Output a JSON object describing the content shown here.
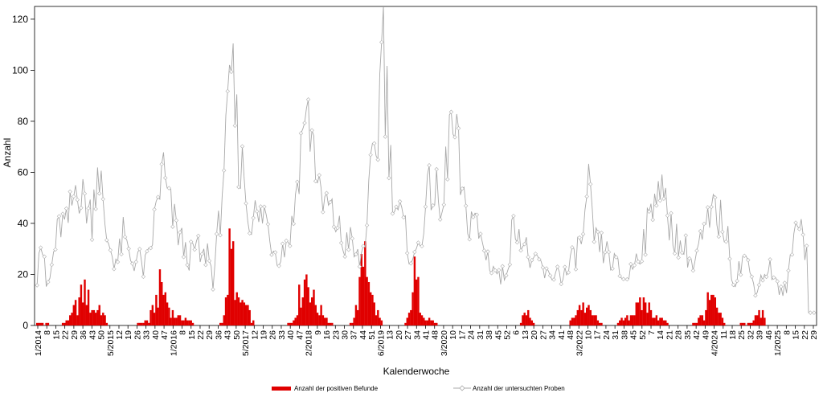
{
  "colors": {
    "positive": "#e00000",
    "tested": "#a8a8a8",
    "axis": "#000000",
    "plot_bg": "#ffffff"
  },
  "chart_data": {
    "type": "bar+line",
    "title": "",
    "xlabel": "Kalenderwoche",
    "ylabel": "Anzahl",
    "ylim": [
      0,
      125
    ],
    "y_ticks": [
      0,
      20,
      40,
      60,
      80,
      100,
      120
    ],
    "grid": false,
    "legend_position": "bottom-center",
    "x_tick_labels": [
      "1/2014",
      "8",
      "15",
      "22",
      "29",
      "36",
      "43",
      "50",
      "5/2015",
      "12",
      "19",
      "26",
      "33",
      "40",
      "47",
      "1/2016",
      "8",
      "15",
      "22",
      "29",
      "36",
      "43",
      "50",
      "5/2017",
      "12",
      "19",
      "26",
      "33",
      "40",
      "47",
      "2/2018",
      "9",
      "16",
      "23",
      "30",
      "37",
      "44",
      "51",
      "6/2019",
      "13",
      "20",
      "27",
      "34",
      "41",
      "48",
      "3/2020",
      "10",
      "17",
      "24",
      "31",
      "38",
      "45",
      "52",
      "6",
      "13",
      "20",
      "27",
      "34",
      "41",
      "48",
      "3/2022",
      "10",
      "17",
      "24",
      "31",
      "38",
      "45",
      "52",
      "7",
      "14",
      "21",
      "28",
      "35",
      "42",
      "49",
      "4/2024",
      "11",
      "18",
      "25",
      "32",
      "39",
      "46",
      "1/2025",
      "8",
      "15",
      "22",
      "29"
    ],
    "series": [
      {
        "name": "Anzahl der positiven Befunde",
        "kind": "bar",
        "anchors": [
          [
            0,
            1
          ],
          [
            12,
            0
          ],
          [
            18,
            3
          ],
          [
            20,
            6
          ],
          [
            23,
            10
          ],
          [
            26,
            15
          ],
          [
            28,
            10
          ],
          [
            31,
            6
          ],
          [
            34,
            8
          ],
          [
            36,
            5
          ],
          [
            38,
            1
          ],
          [
            41,
            0
          ],
          [
            52,
            0
          ],
          [
            56,
            1
          ],
          [
            61,
            2
          ],
          [
            63,
            6
          ],
          [
            66,
            13
          ],
          [
            68,
            17
          ],
          [
            70,
            12
          ],
          [
            72,
            8
          ],
          [
            74,
            5
          ],
          [
            77,
            3
          ],
          [
            80,
            3
          ],
          [
            83,
            2
          ],
          [
            86,
            0
          ],
          [
            98,
            0
          ],
          [
            101,
            2
          ],
          [
            103,
            8
          ],
          [
            104,
            18
          ],
          [
            105,
            28
          ],
          [
            107,
            27
          ],
          [
            108,
            20
          ],
          [
            109,
            12
          ],
          [
            110,
            8
          ],
          [
            112,
            10
          ],
          [
            115,
            6
          ],
          [
            117,
            3
          ],
          [
            119,
            0
          ],
          [
            135,
            0
          ],
          [
            140,
            2
          ],
          [
            142,
            8
          ],
          [
            144,
            14
          ],
          [
            146,
            18
          ],
          [
            147,
            21
          ],
          [
            149,
            16
          ],
          [
            151,
            10
          ],
          [
            153,
            7
          ],
          [
            156,
            5
          ],
          [
            158,
            3
          ],
          [
            162,
            0
          ],
          [
            170,
            0
          ],
          [
            173,
            3
          ],
          [
            175,
            10
          ],
          [
            177,
            20
          ],
          [
            178,
            30
          ],
          [
            179,
            36
          ],
          [
            180,
            28
          ],
          [
            182,
            18
          ],
          [
            183,
            10
          ],
          [
            185,
            6
          ],
          [
            187,
            3
          ],
          [
            189,
            0
          ],
          [
            200,
            0
          ],
          [
            201,
            1
          ],
          [
            202,
            2
          ],
          [
            203,
            4
          ],
          [
            204,
            10
          ],
          [
            205,
            18
          ],
          [
            206,
            20
          ],
          [
            208,
            14
          ],
          [
            209,
            9
          ],
          [
            211,
            5
          ],
          [
            213,
            3
          ],
          [
            216,
            2
          ],
          [
            219,
            0
          ],
          [
            228,
            0
          ],
          [
            230,
            0
          ],
          [
            262,
            0
          ],
          [
            264,
            1
          ],
          [
            266,
            5
          ],
          [
            268,
            6
          ],
          [
            270,
            2
          ],
          [
            272,
            0
          ],
          [
            290,
            0
          ],
          [
            292,
            3
          ],
          [
            294,
            6
          ],
          [
            296,
            8
          ],
          [
            298,
            8
          ],
          [
            300,
            7
          ],
          [
            302,
            5
          ],
          [
            304,
            4
          ],
          [
            306,
            2
          ],
          [
            309,
            0
          ],
          [
            316,
            0
          ],
          [
            319,
            2
          ],
          [
            322,
            4
          ],
          [
            325,
            5
          ],
          [
            328,
            7
          ],
          [
            330,
            9
          ],
          [
            332,
            10
          ],
          [
            334,
            7
          ],
          [
            336,
            5
          ],
          [
            338,
            4
          ],
          [
            340,
            3
          ],
          [
            342,
            2
          ],
          [
            344,
            1
          ],
          [
            346,
            0
          ],
          [
            356,
            0
          ],
          [
            359,
            1
          ],
          [
            362,
            3
          ],
          [
            364,
            5
          ],
          [
            366,
            9
          ],
          [
            368,
            11
          ],
          [
            370,
            8
          ],
          [
            372,
            5
          ],
          [
            374,
            2
          ],
          [
            376,
            0
          ],
          [
            382,
            0
          ],
          [
            385,
            1
          ],
          [
            387,
            0
          ],
          [
            390,
            2
          ],
          [
            393,
            4
          ],
          [
            396,
            5
          ],
          [
            398,
            0
          ]
        ]
      },
      {
        "name": "Anzahl der untersuchten Proben",
        "kind": "line",
        "anchors": [
          [
            0,
            20
          ],
          [
            1,
            35
          ],
          [
            3,
            30
          ],
          [
            5,
            15
          ],
          [
            7,
            18
          ],
          [
            9,
            28
          ],
          [
            11,
            35
          ],
          [
            13,
            40
          ],
          [
            16,
            38
          ],
          [
            18,
            44
          ],
          [
            20,
            50
          ],
          [
            22,
            60
          ],
          [
            24,
            48
          ],
          [
            26,
            50
          ],
          [
            28,
            45
          ],
          [
            30,
            43
          ],
          [
            33,
            65
          ],
          [
            35,
            55
          ],
          [
            37,
            35
          ],
          [
            39,
            33
          ],
          [
            41,
            28
          ],
          [
            44,
            25
          ],
          [
            47,
            35
          ],
          [
            49,
            30
          ],
          [
            52,
            25
          ],
          [
            55,
            27
          ],
          [
            58,
            22
          ],
          [
            61,
            26
          ],
          [
            63,
            35
          ],
          [
            65,
            45
          ],
          [
            67,
            55
          ],
          [
            69,
            60
          ],
          [
            71,
            50
          ],
          [
            73,
            45
          ],
          [
            75,
            40
          ],
          [
            78,
            35
          ],
          [
            81,
            28
          ],
          [
            84,
            27
          ],
          [
            87,
            31
          ],
          [
            90,
            25
          ],
          [
            93,
            30
          ],
          [
            96,
            18
          ],
          [
            98,
            30
          ],
          [
            100,
            45
          ],
          [
            102,
            65
          ],
          [
            104,
            75
          ],
          [
            106,
            97
          ],
          [
            107,
            92
          ],
          [
            109,
            77
          ],
          [
            111,
            60
          ],
          [
            113,
            62
          ],
          [
            115,
            42
          ],
          [
            118,
            45
          ],
          [
            121,
            40
          ],
          [
            124,
            45
          ],
          [
            127,
            35
          ],
          [
            130,
            30
          ],
          [
            133,
            28
          ],
          [
            136,
            33
          ],
          [
            139,
            38
          ],
          [
            141,
            50
          ],
          [
            143,
            65
          ],
          [
            145,
            75
          ],
          [
            146,
            90
          ],
          [
            147,
            78
          ],
          [
            149,
            80
          ],
          [
            151,
            70
          ],
          [
            153,
            60
          ],
          [
            155,
            45
          ],
          [
            158,
            48
          ],
          [
            161,
            42
          ],
          [
            164,
            40
          ],
          [
            167,
            30
          ],
          [
            170,
            35
          ],
          [
            173,
            28
          ],
          [
            176,
            25
          ],
          [
            178,
            30
          ],
          [
            180,
            42
          ],
          [
            182,
            55
          ],
          [
            184,
            65
          ],
          [
            186,
            75
          ],
          [
            187,
            92
          ],
          [
            188,
            122
          ],
          [
            189,
            115
          ],
          [
            190,
            95
          ],
          [
            191,
            88
          ],
          [
            192,
            72
          ],
          [
            193,
            62
          ],
          [
            195,
            50
          ],
          [
            197,
            45
          ],
          [
            200,
            38
          ],
          [
            203,
            30
          ],
          [
            206,
            25
          ],
          [
            209,
            35
          ],
          [
            212,
            45
          ],
          [
            215,
            55
          ],
          [
            218,
            50
          ],
          [
            221,
            40
          ],
          [
            223,
            60
          ],
          [
            224,
            70
          ],
          [
            225,
            80
          ],
          [
            226,
            75
          ],
          [
            228,
            72
          ],
          [
            230,
            65
          ],
          [
            232,
            48
          ],
          [
            235,
            40
          ],
          [
            238,
            45
          ],
          [
            241,
            35
          ],
          [
            244,
            30
          ],
          [
            247,
            25
          ],
          [
            250,
            22
          ],
          [
            253,
            18
          ],
          [
            256,
            22
          ],
          [
            259,
            35
          ],
          [
            262,
            42
          ],
          [
            265,
            32
          ],
          [
            268,
            28
          ],
          [
            271,
            22
          ],
          [
            274,
            25
          ],
          [
            277,
            20
          ],
          [
            280,
            18
          ],
          [
            283,
            22
          ],
          [
            286,
            20
          ],
          [
            289,
            20
          ],
          [
            292,
            25
          ],
          [
            295,
            30
          ],
          [
            298,
            35
          ],
          [
            300,
            45
          ],
          [
            301,
            52
          ],
          [
            303,
            40
          ],
          [
            305,
            32
          ],
          [
            308,
            30
          ],
          [
            311,
            28
          ],
          [
            314,
            25
          ],
          [
            317,
            22
          ],
          [
            320,
            18
          ],
          [
            323,
            20
          ],
          [
            326,
            25
          ],
          [
            329,
            30
          ],
          [
            332,
            35
          ],
          [
            334,
            40
          ],
          [
            336,
            48
          ],
          [
            338,
            60
          ],
          [
            340,
            55
          ],
          [
            342,
            47
          ],
          [
            344,
            42
          ],
          [
            347,
            38
          ],
          [
            350,
            32
          ],
          [
            353,
            30
          ],
          [
            356,
            28
          ],
          [
            358,
            22
          ],
          [
            361,
            30
          ],
          [
            364,
            35
          ],
          [
            367,
            40
          ],
          [
            370,
            45
          ],
          [
            372,
            42
          ],
          [
            375,
            40
          ],
          [
            378,
            28
          ],
          [
            380,
            18
          ],
          [
            383,
            22
          ],
          [
            386,
            28
          ],
          [
            389,
            20
          ],
          [
            392,
            15
          ],
          [
            395,
            18
          ],
          [
            398,
            22
          ],
          [
            401,
            22
          ],
          [
            404,
            15
          ],
          [
            407,
            12
          ],
          [
            410,
            18
          ],
          [
            412,
            30
          ],
          [
            414,
            38
          ],
          [
            416,
            48
          ],
          [
            418,
            35
          ],
          [
            420,
            28
          ]
        ]
      }
    ]
  },
  "legend": {
    "items": [
      {
        "label": "Anzahl der positiven Befunde",
        "kind": "bar"
      },
      {
        "label": "Anzahl der untersuchten Proben",
        "kind": "line"
      }
    ]
  }
}
